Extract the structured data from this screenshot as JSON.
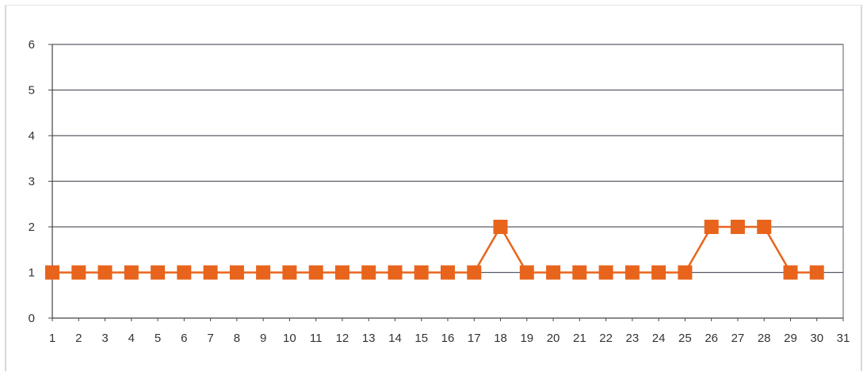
{
  "chart_data": {
    "type": "line",
    "title": "",
    "xlabel": "",
    "ylabel": "",
    "x": [
      1,
      2,
      3,
      4,
      5,
      6,
      7,
      8,
      9,
      10,
      11,
      12,
      13,
      14,
      15,
      16,
      17,
      18,
      19,
      20,
      21,
      22,
      23,
      24,
      25,
      26,
      27,
      28,
      29,
      30,
      31
    ],
    "xticks": [
      "1",
      "2",
      "3",
      "4",
      "5",
      "6",
      "7",
      "8",
      "9",
      "10",
      "11",
      "12",
      "13",
      "14",
      "15",
      "16",
      "17",
      "18",
      "19",
      "20",
      "21",
      "22",
      "23",
      "24",
      "25",
      "26",
      "27",
      "28",
      "29",
      "30",
      "31"
    ],
    "yticks": [
      "0",
      "1",
      "2",
      "3",
      "4",
      "5",
      "6"
    ],
    "ylim": [
      0,
      6
    ],
    "xlim": [
      1,
      31
    ],
    "grid": true,
    "legend": "none",
    "series": [
      {
        "x": [
          1,
          2,
          3,
          4,
          5,
          6,
          7,
          8,
          9,
          10,
          11,
          12,
          13,
          14,
          15,
          16,
          17,
          18,
          19,
          20,
          21,
          22,
          23,
          24,
          25,
          26,
          27,
          28,
          29,
          30
        ],
        "values": [
          1,
          1,
          1,
          1,
          1,
          1,
          1,
          1,
          1,
          1,
          1,
          1,
          1,
          1,
          1,
          1,
          1,
          2,
          1,
          1,
          1,
          1,
          1,
          1,
          1,
          2,
          2,
          2,
          1,
          1
        ],
        "color": "#e8641c",
        "marker": "square"
      }
    ],
    "colors": {
      "line": "#e8641c",
      "marker": "#e8641c",
      "grid": "#5a5a66",
      "axis": "#444444"
    }
  }
}
